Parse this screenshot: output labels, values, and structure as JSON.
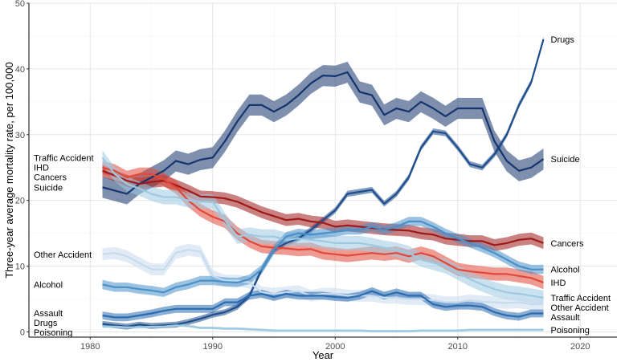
{
  "chart_data": {
    "type": "line",
    "title": "",
    "xlabel": "Year",
    "ylabel": "Three-year average mortality rate, per 100,000",
    "xlim": [
      1975,
      2023
    ],
    "ylim": [
      -0.8,
      50
    ],
    "x_ticks": [
      1980,
      1990,
      2000,
      2010,
      2020
    ],
    "y_ticks": [
      0,
      10,
      20,
      30,
      40,
      50
    ],
    "grid": true,
    "legend": "none (direct labels at line ends)",
    "x": [
      1981,
      1982,
      1983,
      1984,
      1985,
      1986,
      1987,
      1988,
      1989,
      1990,
      1991,
      1992,
      1993,
      1994,
      1995,
      1996,
      1997,
      1998,
      1999,
      2000,
      2001,
      2002,
      2003,
      2004,
      2005,
      2006,
      2007,
      2008,
      2009,
      2010,
      2011,
      2012,
      2013,
      2014,
      2015,
      2016,
      2017
    ],
    "series": [
      {
        "name": "Drugs",
        "color": "#1f4e8c",
        "band_halfwidth": 0.45,
        "left_label": "Drugs",
        "right_label": "Drugs",
        "values": [
          1.2,
          1.0,
          0.8,
          1.1,
          0.9,
          1.0,
          1.1,
          1.5,
          2.0,
          2.6,
          3.0,
          3.8,
          5.5,
          9.5,
          12.5,
          13.5,
          14.2,
          15.5,
          17.0,
          18.5,
          21.0,
          21.3,
          21.6,
          19.5,
          21.0,
          23.5,
          28.0,
          30.5,
          30.2,
          28.0,
          25.5,
          25.0,
          27.0,
          30.0,
          34.5,
          38.0,
          44.5
        ]
      },
      {
        "name": "Suicide",
        "color": "#16346e",
        "band_halfwidth": 1.6,
        "left_label": "Suicide",
        "right_label": "Suicide",
        "values": [
          22.0,
          21.5,
          21.0,
          22.5,
          23.5,
          24.5,
          26.0,
          25.5,
          26.2,
          26.5,
          29.0,
          32.0,
          34.5,
          34.5,
          33.5,
          34.5,
          36.0,
          37.8,
          39.0,
          38.9,
          39.5,
          36.5,
          36.0,
          33.0,
          34.0,
          33.5,
          35.0,
          34.0,
          32.8,
          34.0,
          34.0,
          34.0,
          29.0,
          26.0,
          24.5,
          25.0,
          26.3
        ]
      },
      {
        "name": "Cancers",
        "color": "#9e1a1a",
        "band_halfwidth": 0.9,
        "left_label": "Cancers",
        "right_label": "Cancers",
        "values": [
          24.5,
          23.8,
          23.0,
          22.5,
          22.8,
          23.0,
          22.3,
          21.5,
          20.6,
          20.5,
          20.3,
          19.8,
          19.0,
          18.2,
          17.6,
          17.0,
          17.2,
          16.8,
          16.6,
          16.0,
          16.2,
          16.0,
          15.8,
          15.6,
          15.5,
          15.4,
          15.0,
          14.8,
          14.2,
          14.0,
          13.8,
          13.8,
          13.2,
          13.5,
          14.0,
          14.2,
          13.5
        ]
      },
      {
        "name": "IHD",
        "color": "#e0483a",
        "band_halfwidth": 1.0,
        "left_label": "IHD",
        "right_label": "IHD",
        "values": [
          25.0,
          24.5,
          23.5,
          24.0,
          24.0,
          23.2,
          22.0,
          20.0,
          18.5,
          17.5,
          16.8,
          15.0,
          13.8,
          13.0,
          12.8,
          12.7,
          12.5,
          12.6,
          12.0,
          11.8,
          11.6,
          11.8,
          12.0,
          11.8,
          12.0,
          11.5,
          12.0,
          11.5,
          10.5,
          9.5,
          9.2,
          9.0,
          8.8,
          8.8,
          8.5,
          8.2,
          7.5
        ]
      },
      {
        "name": "Traffic Accident",
        "color": "#9ecae1",
        "band_halfwidth": 1.1,
        "left_label": "Traffic Accident",
        "right_label": "Traffic Accident",
        "values": [
          26.5,
          24.0,
          22.5,
          21.8,
          21.0,
          20.5,
          20.5,
          20.0,
          19.8,
          19.8,
          17.0,
          14.5,
          14.8,
          14.5,
          14.5,
          14.0,
          14.2,
          14.0,
          13.8,
          13.5,
          13.5,
          13.5,
          13.2,
          12.8,
          12.5,
          12.0,
          11.0,
          10.5,
          10.0,
          9.0,
          8.0,
          7.2,
          6.5,
          6.0,
          5.8,
          5.5,
          5.2
        ]
      },
      {
        "name": "Other Accident",
        "color": "#c6dbef",
        "band_halfwidth": 0.9,
        "left_label": "Other Accident",
        "right_label": "Other Accident",
        "values": [
          11.8,
          12.0,
          11.5,
          10.5,
          9.5,
          9.5,
          12.0,
          12.5,
          12.2,
          8.5,
          7.8,
          7.8,
          7.5,
          6.0,
          5.8,
          6.0,
          6.2,
          5.5,
          5.8,
          5.8,
          5.5,
          5.5,
          5.5,
          5.2,
          5.2,
          5.0,
          5.0,
          4.8,
          4.5,
          4.5,
          4.8,
          4.6,
          4.5,
          4.4,
          4.5,
          4.2,
          4.2
        ]
      },
      {
        "name": "Alcohol",
        "color": "#4a90c8",
        "band_halfwidth": 0.7,
        "left_label": "Alcohol",
        "right_label": "Alcohol",
        "values": [
          7.2,
          6.8,
          6.8,
          6.5,
          6.3,
          6.0,
          6.8,
          7.2,
          7.8,
          7.8,
          7.6,
          7.5,
          8.0,
          9.5,
          12.5,
          14.5,
          15.0,
          14.8,
          15.0,
          15.2,
          15.5,
          15.5,
          16.0,
          15.5,
          16.0,
          16.8,
          16.8,
          16.0,
          15.0,
          14.2,
          13.5,
          12.8,
          12.0,
          11.0,
          10.0,
          9.5,
          9.5
        ]
      },
      {
        "name": "Assault",
        "color": "#2b6cb0",
        "band_halfwidth": 0.6,
        "left_label": "Assault",
        "right_label": "Assault",
        "values": [
          2.5,
          2.2,
          2.2,
          2.5,
          2.8,
          3.2,
          3.5,
          3.5,
          3.5,
          3.5,
          4.5,
          4.5,
          5.5,
          5.8,
          5.3,
          5.8,
          5.5,
          5.5,
          5.5,
          5.3,
          5.2,
          5.5,
          6.2,
          5.5,
          6.0,
          5.5,
          5.5,
          4.2,
          3.8,
          4.0,
          4.0,
          3.8,
          3.0,
          2.5,
          2.3,
          2.8,
          2.8
        ]
      },
      {
        "name": "Poisoning",
        "color": "#9ecae1",
        "band_halfwidth": 0.2,
        "left_label": "Poisoning",
        "right_label": "Poisoning",
        "values": [
          0.8,
          0.8,
          0.7,
          0.7,
          0.8,
          0.8,
          1.0,
          0.9,
          0.6,
          0.6,
          0.5,
          0.5,
          0.4,
          0.3,
          0.2,
          0.2,
          0.2,
          0.2,
          0.2,
          0.2,
          0.2,
          0.2,
          0.1,
          0.1,
          0.1,
          0.1,
          0.2,
          0.2,
          0.2,
          0.2,
          0.3,
          0.3,
          0.3,
          0.3,
          0.3,
          0.3,
          0.3
        ]
      }
    ],
    "left_labels_order": [
      "Traffic Accident",
      "IHD",
      "Cancers",
      "Suicide",
      "Other Accident",
      "Alcohol",
      "Assault",
      "Drugs",
      "Poisoning"
    ],
    "right_labels_order": [
      "Drugs",
      "Suicide",
      "Cancers",
      "Alcohol",
      "IHD",
      "Traffic Accident",
      "Other Accident",
      "Assault",
      "Poisoning"
    ]
  }
}
